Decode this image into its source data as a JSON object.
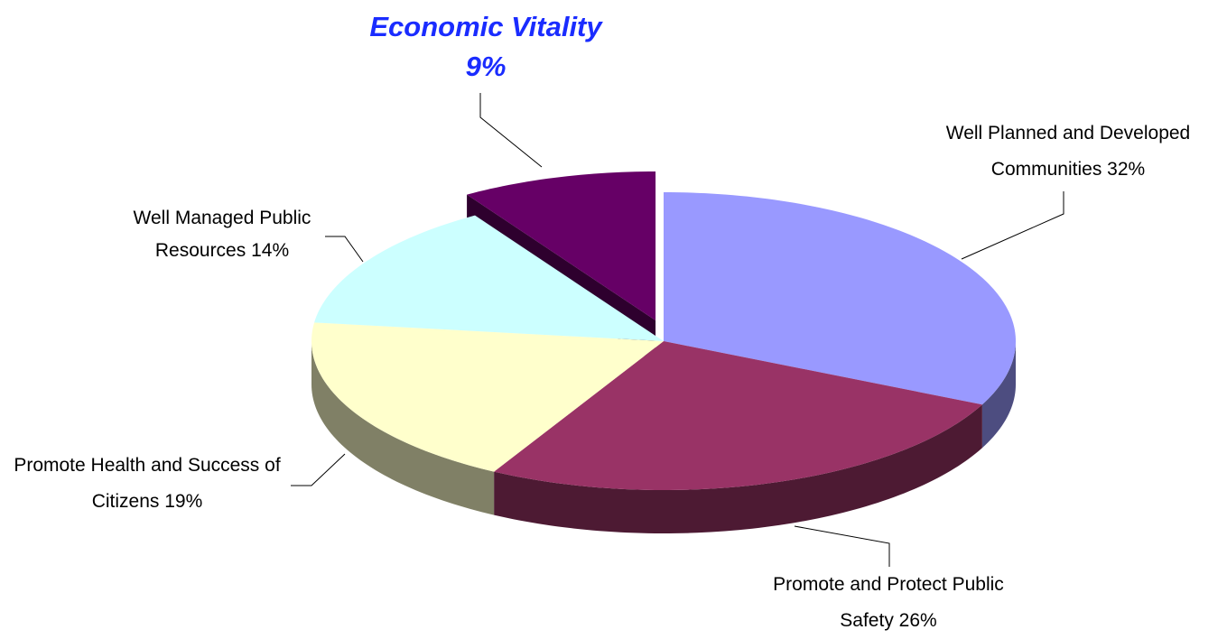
{
  "chart_data": {
    "type": "pie3d",
    "categories": [
      "Well Planned and Developed Communities",
      "Promote and Protect Public Safety",
      "Promote Health and Success of Citizens",
      "Well Managed Public Resources",
      "Economic Vitality"
    ],
    "values": [
      32,
      26,
      19,
      14,
      9
    ],
    "value_labels": [
      "32%",
      "26%",
      "19%",
      "14%",
      "9%"
    ],
    "colors": [
      "#9999ff",
      "#993366",
      "#ffffcc",
      "#ccffff",
      "#660066"
    ],
    "exploded": [
      false,
      false,
      false,
      false,
      true
    ],
    "highlighted": [
      false,
      false,
      false,
      false,
      true
    ]
  }
}
